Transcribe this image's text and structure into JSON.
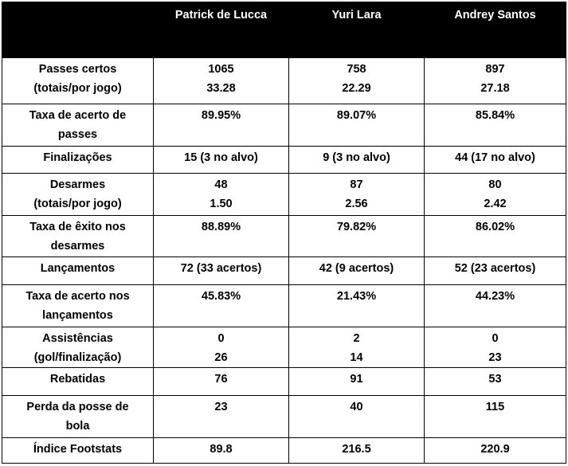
{
  "header": [
    "Patrick de Lucca",
    "Yuri Lara",
    "Andrey Santos"
  ],
  "rows": [
    {
      "label": [
        "Passes certos",
        "(totais/por jogo)"
      ],
      "cells": [
        [
          "1065",
          "33.28"
        ],
        [
          "758",
          "22.29"
        ],
        [
          "897",
          "27.18"
        ]
      ]
    },
    {
      "label": [
        "Taxa de acerto de",
        "passes"
      ],
      "cells": [
        [
          "89.95%"
        ],
        [
          "89.07%"
        ],
        [
          "85.84%"
        ]
      ]
    },
    {
      "label": [
        "Finalizações"
      ],
      "cells": [
        [
          "15 (3 no alvo)"
        ],
        [
          "9 (3 no alvo)"
        ],
        [
          "44 (17 no alvo)"
        ]
      ]
    },
    {
      "label": [
        "Desarmes",
        "(totais/por jogo)"
      ],
      "cells": [
        [
          "48",
          "1.50"
        ],
        [
          "87",
          "2.56"
        ],
        [
          "80",
          "2.42"
        ]
      ]
    },
    {
      "label": [
        "Taxa de êxito nos",
        "desarmes"
      ],
      "cells": [
        [
          "88.89%"
        ],
        [
          "79.82%"
        ],
        [
          "86.02%"
        ]
      ]
    },
    {
      "label": [
        "Lançamentos"
      ],
      "cells": [
        [
          "72 (33 acertos)"
        ],
        [
          "42 (9 acertos)"
        ],
        [
          "52 (23 acertos)"
        ]
      ]
    },
    {
      "label": [
        "Taxa de acerto nos",
        "lançamentos"
      ],
      "cells": [
        [
          "45.83%"
        ],
        [
          "21.43%"
        ],
        [
          "44.23%"
        ]
      ]
    },
    {
      "label": [
        "Assistências",
        "(gol/finalização)"
      ],
      "cells": [
        [
          "0",
          "26"
        ],
        [
          "2",
          "14"
        ],
        [
          "0",
          "23"
        ]
      ]
    },
    {
      "label": [
        "Rebatidas"
      ],
      "cells": [
        [
          "76"
        ],
        [
          "91"
        ],
        [
          "53"
        ]
      ]
    },
    {
      "label": [
        "Perda da posse de",
        "bola"
      ],
      "cells": [
        [
          "23"
        ],
        [
          "40"
        ],
        [
          "115"
        ]
      ]
    },
    {
      "label": [
        "Índice Footstats"
      ],
      "cells": [
        [
          "89.8"
        ],
        [
          "216.5"
        ],
        [
          "220.9"
        ]
      ]
    }
  ]
}
